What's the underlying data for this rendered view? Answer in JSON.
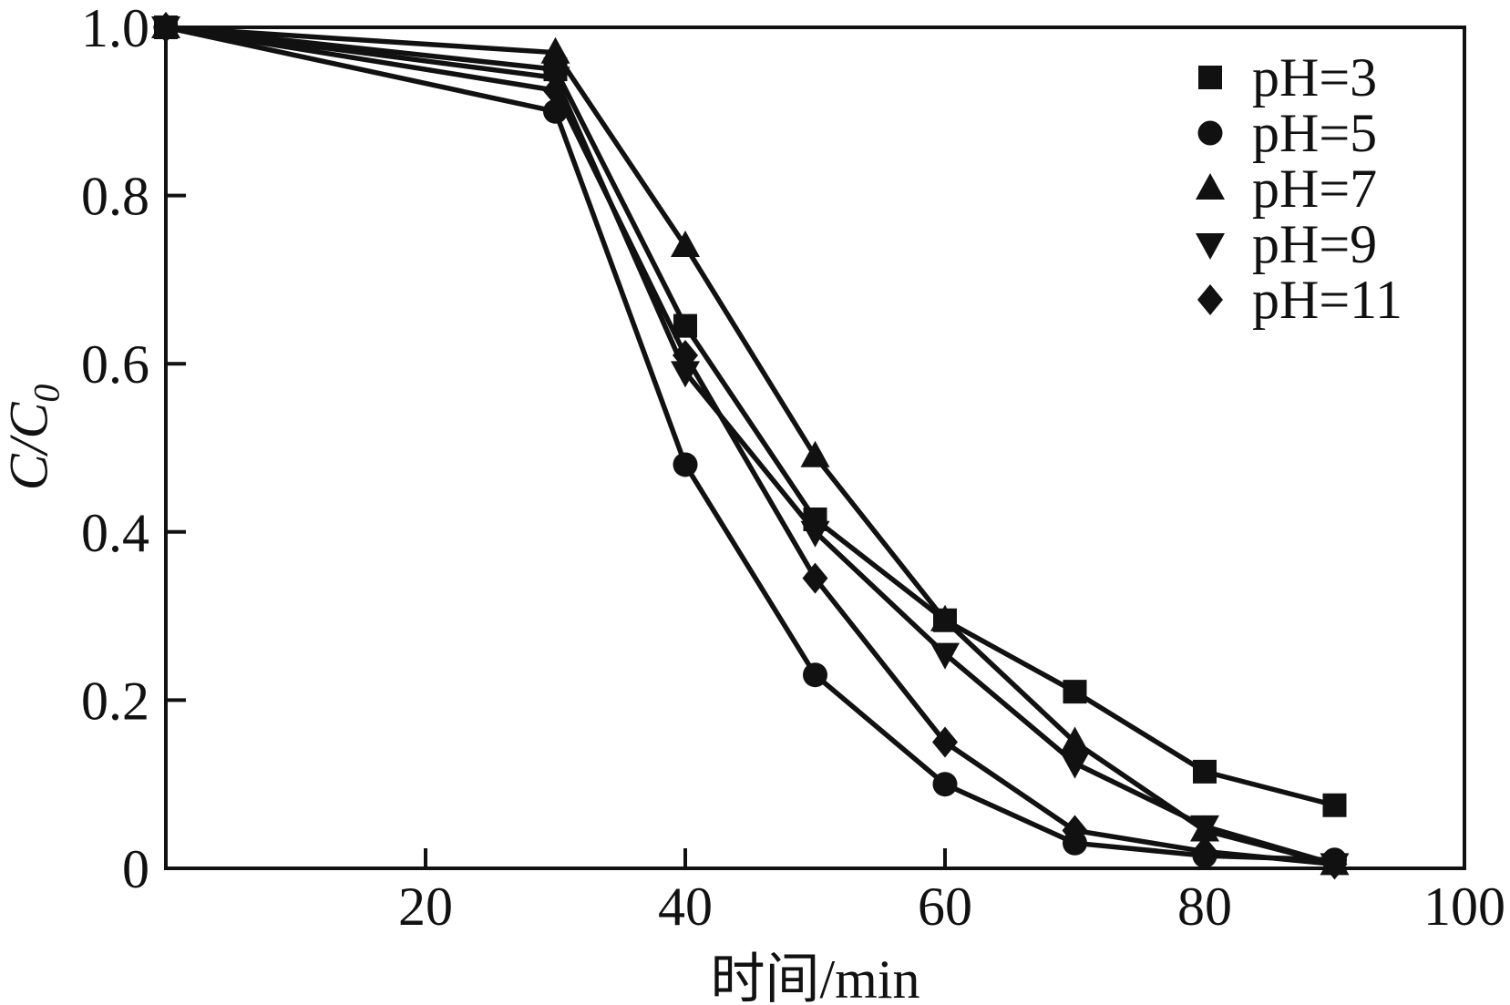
{
  "figure": {
    "background": "#ffffff",
    "ink": "#111111"
  },
  "chart_data": {
    "type": "line",
    "title": "",
    "xlabel": "时间/min",
    "ylabel": "C/C0",
    "ylabel_main": "C/C",
    "ylabel_sub": "0",
    "xlim": [
      0,
      100
    ],
    "ylim": [
      0,
      1.0
    ],
    "grid": false,
    "legend_position": "top-right-inside",
    "x_tick_labels": [
      "20",
      "40",
      "60",
      "80",
      "100"
    ],
    "x_tick_values": [
      20,
      40,
      60,
      80,
      100
    ],
    "x_tick_marks": [
      20,
      40,
      60,
      80
    ],
    "y_tick_labels": [
      "0",
      "0.2",
      "0.4",
      "0.6",
      "0.8",
      "1.0"
    ],
    "y_tick_values": [
      0,
      0.2,
      0.4,
      0.6,
      0.8,
      1.0
    ],
    "y_tick_marks": [
      0.2,
      0.4,
      0.6,
      0.8
    ],
    "x": [
      0,
      30,
      40,
      50,
      60,
      70,
      80,
      90
    ],
    "series": [
      {
        "name": "pH=3",
        "marker": "square",
        "values": [
          1.0,
          0.95,
          0.645,
          0.415,
          0.295,
          0.21,
          0.115,
          0.075
        ]
      },
      {
        "name": "pH=5",
        "marker": "circle",
        "values": [
          1.0,
          0.9,
          0.48,
          0.23,
          0.1,
          0.03,
          0.015,
          0.01
        ]
      },
      {
        "name": "pH=7",
        "marker": "triangle-up",
        "values": [
          1.0,
          0.97,
          0.74,
          0.49,
          0.295,
          0.15,
          0.045,
          0.005
        ]
      },
      {
        "name": "pH=9",
        "marker": "triangle-down",
        "values": [
          1.0,
          0.94,
          0.59,
          0.4,
          0.255,
          0.125,
          0.05,
          0.005
        ]
      },
      {
        "name": "pH=11",
        "marker": "diamond",
        "values": [
          1.0,
          0.925,
          0.61,
          0.345,
          0.15,
          0.045,
          0.02,
          0.005
        ]
      }
    ]
  }
}
